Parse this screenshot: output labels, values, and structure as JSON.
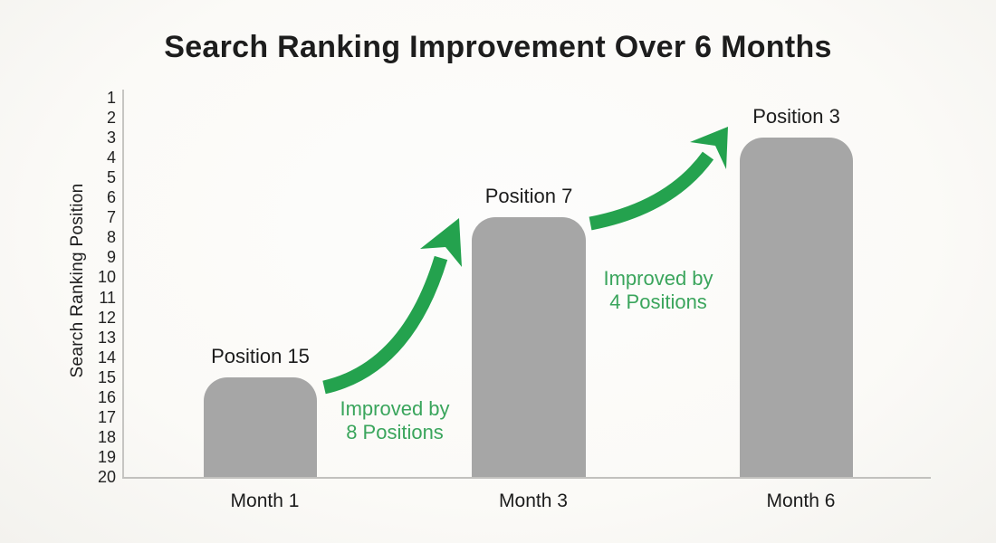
{
  "title": "Search Ranking Improvement Over 6 Months",
  "chart_data": {
    "type": "bar",
    "title": "Search Ranking Improvement Over 6 Months",
    "xlabel": "",
    "ylabel": "Search Ranking Position",
    "ylim": [
      1,
      20
    ],
    "y_axis_direction": "inverted (rank 1 at top, 20 at bottom)",
    "y_ticks": [
      1,
      2,
      3,
      4,
      5,
      6,
      7,
      8,
      9,
      10,
      11,
      12,
      13,
      14,
      15,
      16,
      17,
      18,
      19,
      20
    ],
    "categories": [
      "Month 1",
      "Month 3",
      "Month 6"
    ],
    "values": [
      15,
      7,
      3
    ],
    "bar_labels": [
      "Position 15",
      "Position 7",
      "Position 3"
    ],
    "legend": "none",
    "grid": "off",
    "annotations": [
      {
        "from": "Month 1",
        "to": "Month 3",
        "improvement": 8,
        "line1": "Improved by",
        "line2": "8 Positions"
      },
      {
        "from": "Month 3",
        "to": "Month 6",
        "improvement": 4,
        "line1": "Improved by",
        "line2": "4 Positions"
      }
    ]
  },
  "colors": {
    "background": "#fbfaf7",
    "bar_fill": "#a6a6a6",
    "axis_line": "#c4c3c0",
    "text_dark": "#1d1d1d",
    "green_text": "#3aa55c",
    "green_arrow": "#24a24e"
  }
}
